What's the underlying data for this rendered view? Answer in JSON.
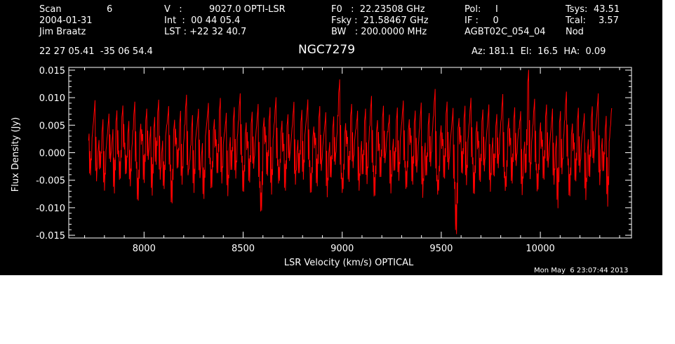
{
  "header": {
    "col1": {
      "scan_label": "Scan",
      "scan_value": "6",
      "date": "2004-01-31",
      "observer": "Jim Braatz"
    },
    "col2": {
      "v_label": "V   :",
      "v_value": "9027.0 OPTI-LSR",
      "int": "Int  :  00 44 05.4",
      "lst": "LST : +22 32 40.7"
    },
    "col3": {
      "f0": "F0   :  22.23508 GHz",
      "fsky": "Fsky :  21.58467 GHz",
      "bw": "BW   : 200.0000 MHz"
    },
    "col4": {
      "pol": "Pol:     I",
      "if": "IF :     0",
      "project": "AGBT02C_054_04"
    },
    "col5": {
      "tsys_label": "Tsys:",
      "tsys_value": "43.51",
      "tcal_label": "Tcal:",
      "tcal_value": "3.57",
      "mode": "Nod"
    },
    "coords": "22 27 05.41  -35 06 54.4",
    "source": "NGC7279",
    "pointing": "Az: 181.1  El:  16.5  HA:  0.09",
    "timestamp": "Mon May  6 23:07:44 2013"
  },
  "colors": {
    "background": "#000000",
    "foreground": "#ffffff",
    "series": "#ff0000"
  },
  "chart_data": {
    "type": "line",
    "title": "NGC7279",
    "xlabel": "LSR Velocity (km/s) OPTICAL",
    "ylabel": "Flux Density (Jy)",
    "xlim": [
      7620,
      10460
    ],
    "ylim": [
      -0.0155,
      0.0155
    ],
    "xticks": [
      8000,
      8500,
      9000,
      9500,
      10000
    ],
    "xtick_labels": [
      "8000",
      "8500",
      "9000",
      "9500",
      "10000"
    ],
    "yticks": [
      -0.015,
      -0.01,
      -0.005,
      0.0,
      0.005,
      0.01,
      0.015
    ],
    "ytick_labels": [
      "-0.015",
      "-0.010",
      "-0.005",
      "0.000",
      "0.005",
      "0.010",
      "0.015"
    ],
    "grid": false,
    "series": [
      {
        "x_start": 7720,
        "x_end": 10360,
        "y": [
          0.0022,
          -0.0041,
          0.0036,
          0.0081,
          -0.0052,
          0.0011,
          -0.0028,
          0.0047,
          -0.0069,
          0.0013,
          0.0058,
          -0.0017,
          0.0029,
          -0.0074,
          0.0064,
          -0.0008,
          -0.0047,
          0.0073,
          0.0006,
          -0.0038,
          0.0044,
          -0.0061,
          0.0018,
          0.0079,
          -0.0029,
          -0.0087,
          0.0041,
          0.0021,
          -0.0055,
          0.0067,
          -0.0013,
          0.0034,
          -0.0078,
          0.0052,
          -0.0022,
          0.0082,
          -0.0049,
          0.0009,
          -0.0066,
          0.0039,
          0.0071,
          -0.0034,
          -0.0092,
          0.0048,
          0.0015,
          -0.0027,
          0.0062,
          -0.0058,
          0.0026,
          0.0091,
          -0.0041,
          -0.0012,
          0.0054,
          -0.0073,
          0.0031,
          0.0066,
          -0.0046,
          0.0004,
          -0.0084,
          0.0038,
          0.0077,
          -0.0021,
          -0.0063,
          0.0049,
          0.0012,
          -0.0037,
          0.0085,
          -0.0056,
          0.0024,
          0.0058,
          -0.0079,
          0.0016,
          -0.0031,
          0.0069,
          -0.0047,
          0.0036,
          0.0094,
          -0.0018,
          -0.0071,
          0.0043,
          0.0008,
          -0.0054,
          0.0061,
          -0.0029,
          0.0027,
          0.0074,
          -0.0064,
          -0.0105,
          0.0052,
          0.0019,
          -0.0042,
          0.0068,
          -0.0076,
          0.0033,
          0.0087,
          -0.0024,
          -0.0051,
          0.0046,
          0.0003,
          -0.0069,
          0.0057,
          -0.0015,
          0.0029,
          0.0078,
          -0.0058,
          0.0011,
          -0.0037,
          0.0064,
          -0.0049,
          0.0041,
          0.0083,
          -0.0026,
          -0.0072,
          0.0036,
          0.0014,
          -0.0061,
          0.0071,
          -0.0033,
          0.0021,
          0.0059,
          -0.0081,
          0.0007,
          -0.0045,
          0.0053,
          -0.0022,
          0.0037,
          0.0118,
          -0.0048,
          -0.0066,
          0.0042,
          0.0016,
          -0.0053,
          0.0075,
          -0.0028,
          0.0031,
          0.0062,
          -0.0069,
          0.0009,
          -0.0039,
          0.0066,
          -0.0057,
          0.0024,
          0.0089,
          -0.0035,
          -0.0078,
          0.0047,
          0.0004,
          -0.0044,
          0.0072,
          -0.0019,
          0.0028,
          0.0055,
          -0.0074,
          0.0013,
          -0.0032,
          0.0068,
          -0.0051,
          0.0035,
          0.0081,
          -0.0027,
          -0.0063,
          0.0049,
          0.0018,
          -0.0058,
          0.0063,
          -0.0036,
          0.0022,
          0.0076,
          -0.0082,
          0.0006,
          -0.0041,
          0.0059,
          -0.0025,
          0.0044,
          0.0101,
          -0.0052,
          -0.0069,
          0.0038,
          0.0012,
          -0.0047,
          0.0079,
          -0.0031,
          0.0025,
          0.0067,
          -0.0066,
          -0.0148,
          0.0051,
          0.0019,
          -0.0038,
          0.0071,
          -0.0059,
          0.0032,
          0.0086,
          -0.0021,
          -0.0075,
          0.0045,
          0.0009,
          -0.0053,
          0.0065,
          -0.0034,
          0.0027,
          0.0073,
          -0.0071,
          0.0015,
          -0.0043,
          0.0057,
          -0.0028,
          0.0039,
          0.0092,
          -0.0046,
          -0.0062,
          0.0051,
          0.0014,
          -0.0056,
          0.0069,
          -0.0024,
          0.0033,
          0.0061,
          -0.0077,
          0.0008,
          -0.0036,
          0.0135,
          -0.0048,
          0.0029,
          0.0084,
          -0.0032,
          -0.0067,
          0.0043,
          0.0011,
          -0.0049,
          0.0074,
          -0.0027,
          0.0022,
          0.0066,
          -0.0058,
          0.0017,
          -0.0101,
          0.0062,
          -0.0039,
          0.0035,
          0.0097,
          -0.0023,
          -0.0079,
          0.0041,
          0.0006,
          -0.0052,
          0.0068,
          -0.0036,
          0.0024,
          0.0057,
          -0.0086,
          0.0012,
          -0.0044,
          0.0071,
          -0.0019,
          0.0046,
          0.0093,
          -0.0059,
          0.0014,
          -0.0033,
          0.0052,
          -0.0098,
          0.0028,
          0.0081
        ]
      }
    ]
  }
}
